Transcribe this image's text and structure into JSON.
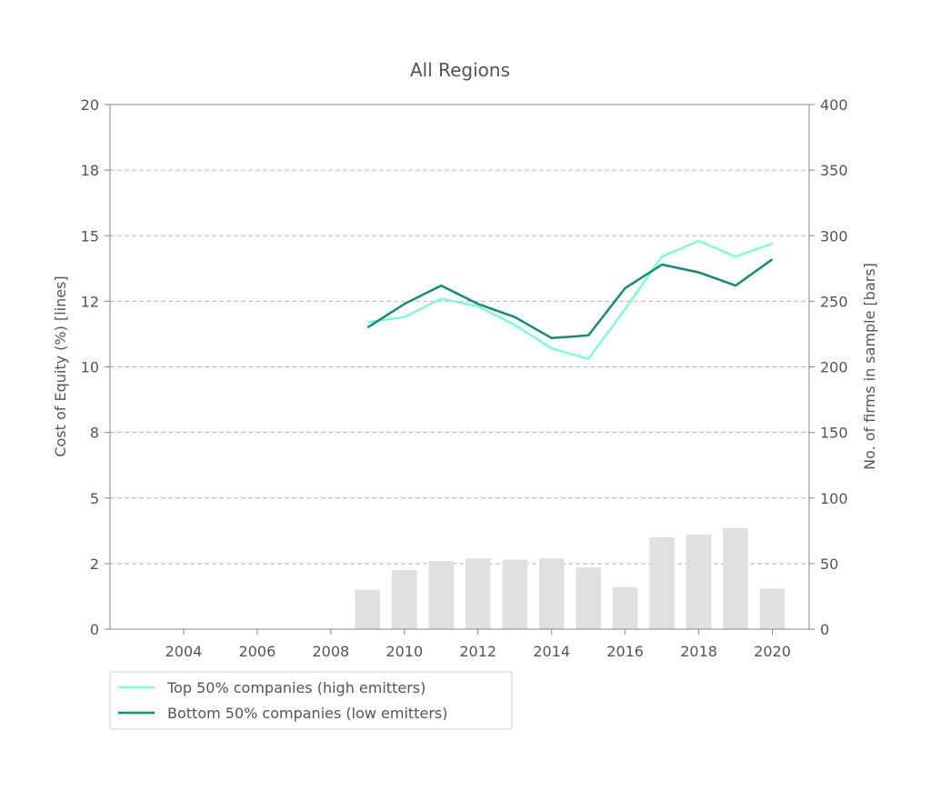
{
  "chart_data": {
    "type": "line",
    "title": "All Regions",
    "xlabel": "",
    "ylabel": "Cost of Equity (%) [lines]",
    "y2label": "No. of firms in sample [bars]",
    "xlim": [
      2002.0,
      2021.0
    ],
    "ylim": [
      0,
      20
    ],
    "y2lim": [
      0,
      400
    ],
    "x_ticks": [
      2004,
      2006,
      2008,
      2010,
      2012,
      2014,
      2016,
      2018,
      2020
    ],
    "y_ticks": [
      0,
      2.5,
      5,
      7.5,
      10,
      12.5,
      15,
      17.5,
      20
    ],
    "y_tick_labels": [
      "0",
      "2",
      "5",
      "8",
      "10",
      "12",
      "15",
      "18",
      "20"
    ],
    "y2_ticks": [
      0,
      50,
      100,
      150,
      200,
      250,
      300,
      350,
      400
    ],
    "grid": "horizontal dashed",
    "legend_position": "bottom-left, below chart",
    "series": [
      {
        "name": "Top 50% companies (high emitters)",
        "color": "#7ffcd6",
        "x": [
          2009,
          2010,
          2011,
          2012,
          2013,
          2014,
          2015,
          2016,
          2017,
          2018,
          2019,
          2020
        ],
        "values": [
          11.7,
          11.9,
          12.6,
          12.3,
          11.6,
          10.7,
          10.3,
          12.2,
          14.2,
          14.8,
          14.2,
          14.7
        ]
      },
      {
        "name": "Bottom 50% companies (low emitters)",
        "color": "#148a78",
        "x": [
          2009,
          2010,
          2011,
          2012,
          2013,
          2014,
          2015,
          2016,
          2017,
          2018,
          2019,
          2020
        ],
        "values": [
          11.5,
          12.4,
          13.1,
          12.4,
          11.9,
          11.1,
          11.2,
          13.0,
          13.9,
          13.6,
          13.1,
          14.1
        ]
      }
    ],
    "bars": {
      "name": "No. of firms in sample",
      "color": "#e0e0e0",
      "axis": "right",
      "x": [
        2009,
        2010,
        2011,
        2012,
        2013,
        2014,
        2015,
        2016,
        2017,
        2018,
        2019,
        2020
      ],
      "values": [
        30,
        45,
        52,
        54,
        53,
        54,
        47,
        32,
        70,
        72,
        77,
        31
      ]
    }
  }
}
